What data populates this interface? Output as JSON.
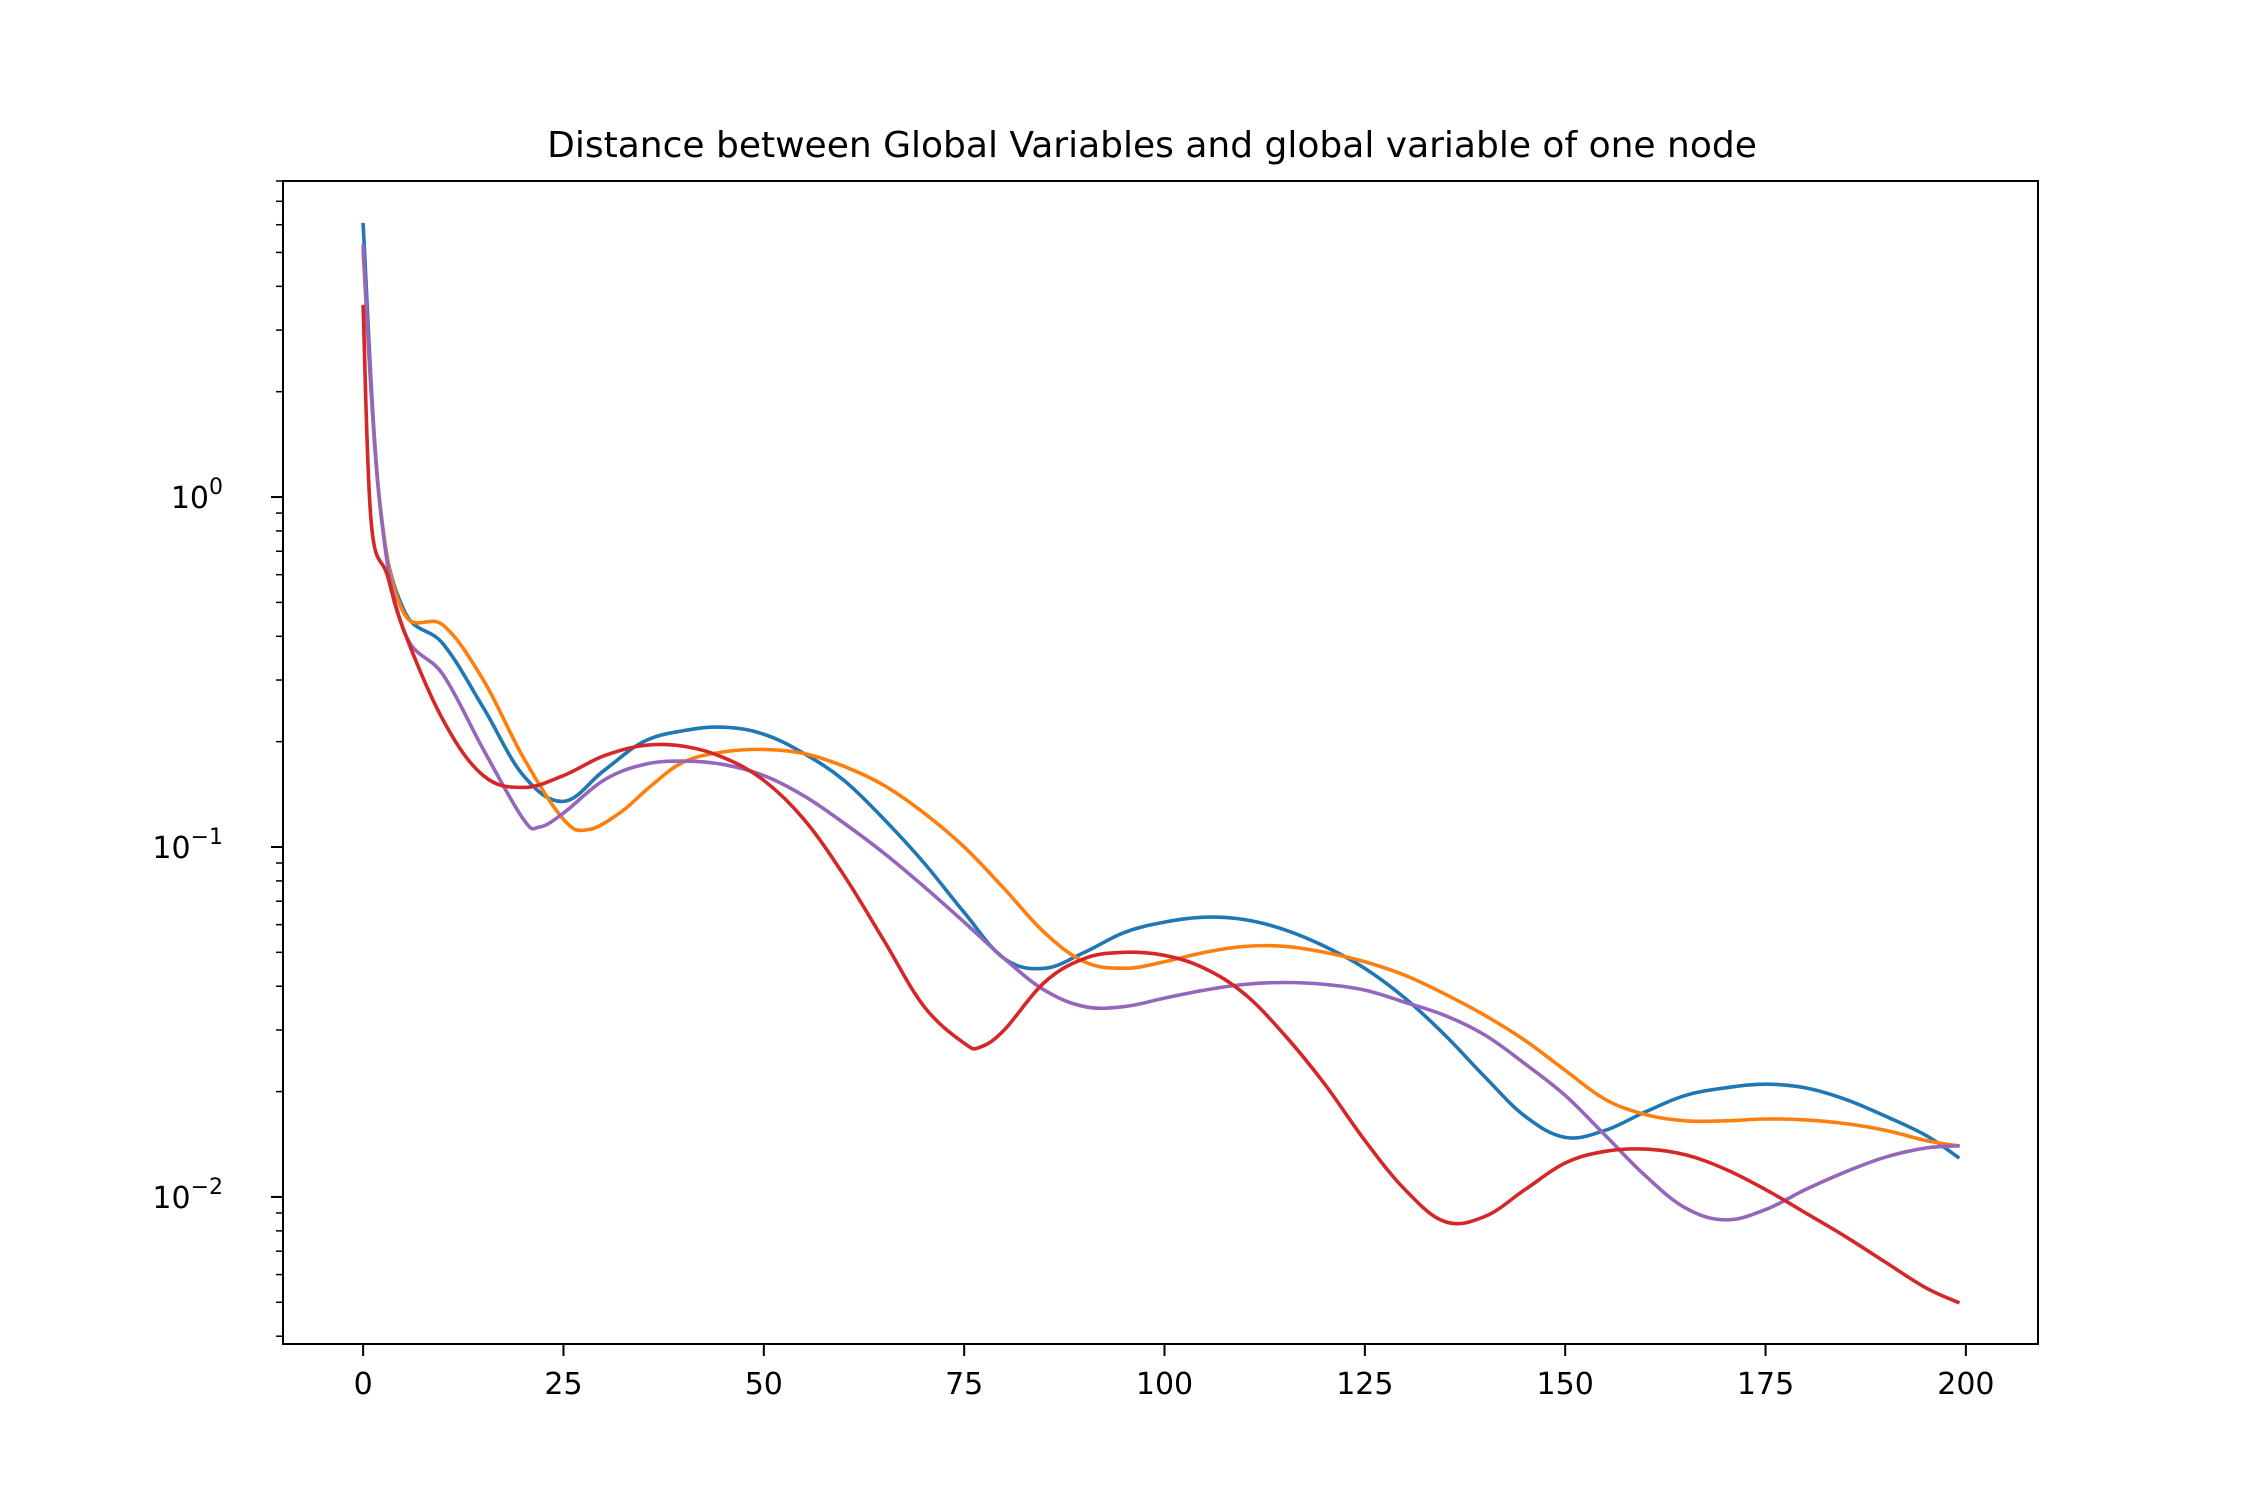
{
  "chart_data": {
    "type": "line",
    "title": "Distance between Global Variables and global variable of one node",
    "xlabel": "",
    "ylabel": "",
    "xlim": [
      -10,
      209
    ],
    "ylim": [
      0.0038,
      8.0
    ],
    "yscale": "log",
    "grid": false,
    "legend": "none",
    "x_ticks": [
      {
        "value": 0,
        "label": "0"
      },
      {
        "value": 25,
        "label": "25"
      },
      {
        "value": 50,
        "label": "50"
      },
      {
        "value": 75,
        "label": "75"
      },
      {
        "value": 100,
        "label": "100"
      },
      {
        "value": 125,
        "label": "125"
      },
      {
        "value": 150,
        "label": "150"
      },
      {
        "value": 175,
        "label": "175"
      },
      {
        "value": 200,
        "label": "200"
      }
    ],
    "y_ticks": [
      {
        "value": 1,
        "base": "10",
        "exp": "0"
      },
      {
        "value": 0.1,
        "base": "10",
        "exp": "−1"
      },
      {
        "value": 0.01,
        "base": "10",
        "exp": "−2"
      }
    ],
    "series": [
      {
        "color": "#1f77b4",
        "x": [
          0,
          2,
          5,
          10,
          15,
          20,
          25,
          30,
          35,
          40,
          45,
          50,
          55,
          60,
          65,
          70,
          75,
          80,
          85,
          90,
          95,
          100,
          105,
          110,
          115,
          120,
          125,
          130,
          135,
          140,
          145,
          150,
          155,
          160,
          165,
          170,
          175,
          180,
          185,
          190,
          195,
          199
        ],
        "y": [
          6.0,
          1.0,
          0.48,
          0.38,
          0.25,
          0.16,
          0.135,
          0.165,
          0.2,
          0.215,
          0.22,
          0.21,
          0.185,
          0.155,
          0.12,
          0.09,
          0.065,
          0.048,
          0.045,
          0.05,
          0.057,
          0.061,
          0.063,
          0.062,
          0.058,
          0.052,
          0.045,
          0.037,
          0.029,
          0.022,
          0.017,
          0.0148,
          0.0155,
          0.0175,
          0.0195,
          0.0205,
          0.021,
          0.0205,
          0.019,
          0.017,
          0.015,
          0.013
        ]
      },
      {
        "color": "#ff7f0e",
        "x": [
          0,
          2,
          5,
          10,
          15,
          20,
          25,
          28,
          32,
          36,
          40,
          45,
          50,
          55,
          60,
          65,
          70,
          75,
          80,
          85,
          90,
          95,
          100,
          105,
          110,
          115,
          120,
          125,
          130,
          135,
          140,
          145,
          150,
          155,
          160,
          165,
          170,
          175,
          180,
          185,
          190,
          195,
          199
        ],
        "y": [
          5.0,
          1.0,
          0.47,
          0.43,
          0.3,
          0.18,
          0.12,
          0.112,
          0.125,
          0.15,
          0.175,
          0.187,
          0.19,
          0.185,
          0.17,
          0.15,
          0.125,
          0.1,
          0.076,
          0.057,
          0.047,
          0.045,
          0.047,
          0.05,
          0.052,
          0.052,
          0.05,
          0.047,
          0.043,
          0.038,
          0.033,
          0.028,
          0.023,
          0.019,
          0.0172,
          0.0165,
          0.0165,
          0.0167,
          0.0166,
          0.0162,
          0.0155,
          0.0145,
          0.014
        ]
      },
      {
        "color": "#9467bd",
        "x": [
          0,
          2,
          5,
          10,
          15,
          20,
          22,
          25,
          30,
          35,
          40,
          45,
          50,
          55,
          60,
          65,
          70,
          75,
          80,
          85,
          90,
          95,
          100,
          105,
          110,
          115,
          120,
          125,
          130,
          135,
          140,
          145,
          150,
          155,
          160,
          165,
          170,
          175,
          180,
          185,
          190,
          195,
          199
        ],
        "y": [
          5.2,
          1.0,
          0.42,
          0.31,
          0.19,
          0.12,
          0.114,
          0.125,
          0.155,
          0.172,
          0.176,
          0.172,
          0.16,
          0.14,
          0.117,
          0.096,
          0.077,
          0.061,
          0.048,
          0.039,
          0.035,
          0.035,
          0.037,
          0.039,
          0.0405,
          0.041,
          0.0405,
          0.039,
          0.036,
          0.033,
          0.029,
          0.024,
          0.0195,
          0.015,
          0.0115,
          0.0093,
          0.0086,
          0.0092,
          0.0105,
          0.0118,
          0.013,
          0.0138,
          0.014
        ]
      },
      {
        "color": "#d62728",
        "x": [
          0,
          1,
          3,
          5,
          10,
          15,
          20,
          25,
          30,
          35,
          40,
          45,
          50,
          55,
          60,
          65,
          70,
          75,
          77,
          80,
          85,
          90,
          95,
          100,
          105,
          110,
          115,
          120,
          125,
          130,
          135,
          140,
          145,
          150,
          155,
          160,
          165,
          170,
          175,
          180,
          185,
          190,
          195,
          199
        ],
        "y": [
          3.5,
          0.85,
          0.6,
          0.42,
          0.23,
          0.16,
          0.148,
          0.16,
          0.182,
          0.195,
          0.194,
          0.18,
          0.155,
          0.12,
          0.083,
          0.054,
          0.035,
          0.0275,
          0.0268,
          0.03,
          0.041,
          0.048,
          0.05,
          0.049,
          0.045,
          0.038,
          0.029,
          0.021,
          0.0145,
          0.0105,
          0.0085,
          0.0088,
          0.0105,
          0.0125,
          0.0135,
          0.0137,
          0.0132,
          0.012,
          0.0105,
          0.009,
          0.0077,
          0.0065,
          0.0055,
          0.005
        ]
      }
    ]
  }
}
